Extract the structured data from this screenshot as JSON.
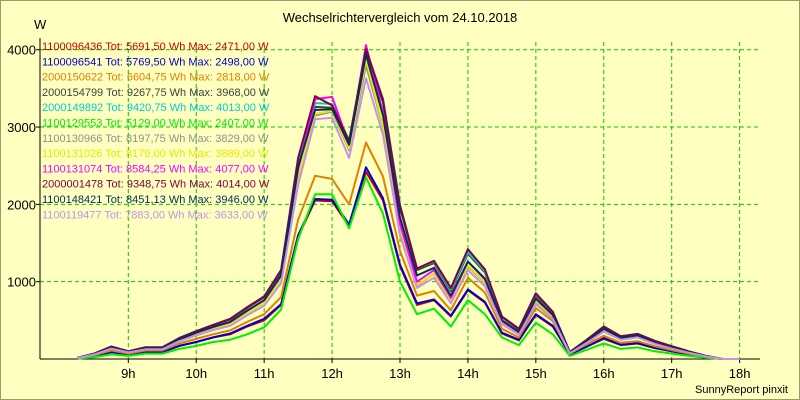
{
  "title": "Wechselrichtervergleich vom 24.10.2018",
  "unit_label": "W",
  "credit": "SunnyReport pinxit",
  "chart_data": {
    "type": "line",
    "title": "Wechselrichtervergleich vom 24.10.2018",
    "ylabel": "W",
    "xlabel": "",
    "x_unit": "hour",
    "xlim": [
      7.7,
      18.3
    ],
    "ylim": [
      0,
      4100
    ],
    "yticks": [
      1000,
      2000,
      3000,
      4000
    ],
    "ytick_labels": [
      "1000",
      "2000",
      "3000",
      "4000"
    ],
    "xticks": [
      9,
      10,
      11,
      12,
      13,
      14,
      15,
      16,
      17,
      18
    ],
    "xtick_labels": [
      "9h",
      "10h",
      "11h",
      "12h",
      "13h",
      "14h",
      "15h",
      "16h",
      "17h",
      "18h"
    ],
    "grid": true,
    "legend_position": "top-left",
    "x": [
      8.25,
      8.5,
      8.75,
      9.0,
      9.25,
      9.5,
      9.75,
      10.0,
      10.25,
      10.5,
      10.75,
      11.0,
      11.25,
      11.5,
      11.75,
      12.0,
      12.25,
      12.5,
      12.75,
      13.0,
      13.25,
      13.5,
      13.75,
      14.0,
      14.25,
      14.5,
      14.75,
      15.0,
      15.25,
      15.5,
      15.75,
      16.0,
      16.25,
      16.5,
      16.75,
      17.0,
      17.25,
      17.5,
      17.75,
      18.0
    ],
    "series": [
      {
        "name": "1100096436",
        "legend": "1100096436  Tot: 5691,50 Wh Max: 2471,00 W",
        "color": "#cc0000",
        "values": [
          5,
          40,
          90,
          60,
          95,
          90,
          170,
          220,
          280,
          320,
          420,
          500,
          700,
          1580,
          2050,
          2040,
          1720,
          2420,
          2050,
          1200,
          700,
          760,
          550,
          890,
          730,
          330,
          240,
          570,
          420,
          60,
          160,
          260,
          180,
          200,
          140,
          100,
          60,
          25,
          0,
          0
        ]
      },
      {
        "name": "1100096541",
        "legend": "1100096541  Tot: 5769,50 Wh Max: 2498,00 W",
        "color": "#0000cc",
        "values": [
          5,
          40,
          90,
          60,
          95,
          90,
          170,
          220,
          280,
          330,
          430,
          520,
          710,
          1600,
          2070,
          2060,
          1740,
          2480,
          2080,
          1220,
          720,
          770,
          560,
          900,
          740,
          340,
          250,
          580,
          430,
          60,
          160,
          270,
          185,
          205,
          145,
          100,
          60,
          25,
          0,
          0
        ]
      },
      {
        "name": "2000150622",
        "legend": "2000150622  Tot: 6604,75 Wh Max: 2818,00 W",
        "color": "#e08000",
        "values": [
          8,
          50,
          110,
          70,
          110,
          110,
          200,
          260,
          320,
          370,
          480,
          580,
          800,
          1800,
          2370,
          2330,
          2000,
          2800,
          2360,
          1400,
          820,
          880,
          630,
          1050,
          860,
          390,
          280,
          660,
          490,
          70,
          190,
          300,
          210,
          230,
          165,
          115,
          70,
          30,
          0,
          0
        ]
      },
      {
        "name": "2000154799",
        "legend": "2000154799  Tot: 9267,75 Wh Max: 3968,00 W",
        "color": "#404040",
        "values": [
          15,
          70,
          160,
          100,
          150,
          150,
          270,
          360,
          440,
          510,
          660,
          800,
          1130,
          2550,
          3260,
          3250,
          2780,
          3950,
          3320,
          1960,
          1150,
          1240,
          880,
          1360,
          1120,
          540,
          380,
          820,
          600,
          90,
          240,
          410,
          290,
          320,
          230,
          160,
          95,
          40,
          0,
          0
        ]
      },
      {
        "name": "2000149892",
        "legend": "2000149892  Tot: 9420,75 Wh Max: 4013,00 W",
        "color": "#00cccc",
        "values": [
          15,
          70,
          160,
          100,
          150,
          150,
          270,
          360,
          440,
          520,
          670,
          810,
          1150,
          2580,
          3310,
          3300,
          2830,
          4000,
          3370,
          2000,
          1170,
          1260,
          900,
          1380,
          1140,
          550,
          390,
          840,
          610,
          90,
          250,
          420,
          295,
          325,
          235,
          165,
          100,
          40,
          0,
          0
        ]
      },
      {
        "name": "1100129553",
        "legend": "1100129553  Tot: 5129,00 Wh Max: 2407,00 W",
        "color": "#00ee00",
        "values": [
          3,
          25,
          60,
          40,
          70,
          70,
          130,
          170,
          220,
          250,
          320,
          410,
          640,
          1550,
          2130,
          2130,
          1690,
          2350,
          1880,
          1000,
          580,
          650,
          420,
          760,
          580,
          280,
          180,
          470,
          320,
          40,
          120,
          200,
          130,
          150,
          100,
          70,
          40,
          15,
          0,
          0
        ]
      },
      {
        "name": "1100130966",
        "legend": "1100130966  Tot: 8197,75 Wh Max: 3829,00 W",
        "color": "#909090",
        "values": [
          12,
          60,
          140,
          90,
          130,
          130,
          240,
          320,
          390,
          450,
          590,
          720,
          1020,
          2330,
          3150,
          3200,
          2700,
          3800,
          3000,
          1650,
          950,
          1100,
          750,
          1200,
          980,
          470,
          330,
          740,
          540,
          80,
          220,
          370,
          260,
          290,
          205,
          140,
          85,
          35,
          0,
          0
        ]
      },
      {
        "name": "1100131026",
        "legend": "1100131026  Tot: 8179,00 Wh Max: 3889,00 W",
        "color": "#e8e800",
        "values": [
          12,
          60,
          140,
          90,
          130,
          130,
          240,
          320,
          390,
          450,
          590,
          720,
          1020,
          2340,
          3170,
          3210,
          2720,
          3870,
          3020,
          1660,
          960,
          1100,
          760,
          1210,
          990,
          470,
          330,
          750,
          545,
          80,
          220,
          375,
          262,
          292,
          207,
          142,
          86,
          35,
          0,
          0
        ]
      },
      {
        "name": "1100131074",
        "legend": "1100131074  Tot: 8584,25 Wh Max: 4077,00 W",
        "color": "#ff00ff",
        "values": [
          14,
          65,
          150,
          95,
          140,
          140,
          255,
          340,
          415,
          480,
          625,
          760,
          1080,
          2450,
          3360,
          3390,
          2780,
          4060,
          3180,
          1750,
          1000,
          1150,
          790,
          1260,
          1030,
          490,
          345,
          780,
          570,
          85,
          230,
          390,
          275,
          305,
          215,
          148,
          90,
          37,
          0,
          0
        ]
      },
      {
        "name": "2000001478",
        "legend": "2000001478  Tot: 9348,75 Wh Max: 4014,00 W",
        "color": "#800040",
        "values": [
          15,
          70,
          160,
          100,
          150,
          150,
          270,
          360,
          440,
          520,
          670,
          810,
          1150,
          2600,
          3400,
          3280,
          2820,
          4010,
          3350,
          1980,
          1170,
          1270,
          920,
          1420,
          1160,
          550,
          390,
          850,
          610,
          90,
          250,
          420,
          295,
          325,
          235,
          165,
          100,
          40,
          0,
          0
        ]
      },
      {
        "name": "1100148421",
        "legend": "1100148421  Tot: 8451,13 Wh Max: 3946,00 W",
        "color": "#003060",
        "values": [
          13,
          65,
          150,
          95,
          140,
          140,
          255,
          340,
          415,
          480,
          625,
          760,
          1080,
          2480,
          3220,
          3230,
          2770,
          3940,
          3150,
          1830,
          1080,
          1180,
          820,
          1260,
          1040,
          500,
          350,
          780,
          570,
          85,
          230,
          390,
          275,
          305,
          215,
          150,
          90,
          37,
          0,
          0
        ]
      },
      {
        "name": "1100119477",
        "legend": "1100119477  Tot: 7883,00 Wh Max: 3633,00 W",
        "color": "#c890e8",
        "values": [
          12,
          58,
          135,
          85,
          125,
          125,
          230,
          305,
          375,
          430,
          565,
          690,
          980,
          2250,
          3100,
          3120,
          2600,
          3630,
          2900,
          1600,
          920,
          1050,
          720,
          1150,
          940,
          450,
          315,
          710,
          520,
          75,
          210,
          355,
          250,
          280,
          197,
          135,
          82,
          33,
          0,
          0
        ]
      }
    ]
  }
}
